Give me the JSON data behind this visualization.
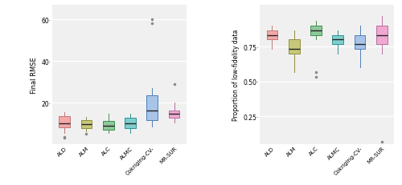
{
  "categories": [
    "ALD",
    "ALM",
    "ALC",
    "ALMC",
    "Cokriging-CV-",
    "MR-SUR"
  ],
  "colors": [
    "#f4a8a8",
    "#c8c87a",
    "#8ec89a",
    "#7ecece",
    "#a8c4e8",
    "#f0a8d0"
  ],
  "edge_colors": [
    "#c07878",
    "#909040",
    "#409050",
    "#309090",
    "#5080b8",
    "#b870a0"
  ],
  "rmse": {
    "ylabel": "Final RMSE",
    "ylim": [
      0,
      67
    ],
    "yticks": [
      20,
      40,
      60
    ],
    "ytick_labels": [
      "20·",
      "40·",
      "60·"
    ],
    "boxes": [
      {
        "q1": 8.0,
        "median": 10.0,
        "q3": 13.5,
        "whislo": 5.5,
        "whishi": 15.5,
        "fliers_lo": [
          3.0,
          3.5
        ],
        "fliers_hi": []
      },
      {
        "q1": 7.5,
        "median": 9.5,
        "q3": 11.5,
        "whislo": 6.0,
        "whishi": 13.0,
        "fliers_lo": [
          5.0
        ],
        "fliers_hi": []
      },
      {
        "q1": 7.0,
        "median": 9.0,
        "q3": 11.0,
        "whislo": 5.5,
        "whishi": 14.5,
        "fliers_lo": [],
        "fliers_hi": []
      },
      {
        "q1": 7.5,
        "median": 10.0,
        "q3": 12.5,
        "whislo": 5.5,
        "whishi": 14.5,
        "fliers_lo": [],
        "fliers_hi": []
      },
      {
        "q1": 11.5,
        "median": 16.0,
        "q3": 23.5,
        "whislo": 8.5,
        "whishi": 27.0,
        "fliers_lo": [],
        "fliers_hi": [
          58.0,
          60.0
        ]
      },
      {
        "q1": 12.5,
        "median": 14.5,
        "q3": 16.0,
        "whislo": 10.5,
        "whishi": 20.0,
        "fliers_lo": [],
        "fliers_hi": [
          29.0
        ]
      }
    ]
  },
  "prop": {
    "ylabel": "Proportion of low-fidelity data",
    "ylim": [
      0.05,
      1.05
    ],
    "yticks": [
      0.25,
      0.5,
      0.75
    ],
    "ytick_labels": [
      "0.25·",
      "0.50·",
      "0.75·"
    ],
    "boxes": [
      {
        "q1": 0.8,
        "median": 0.833,
        "q3": 0.867,
        "whislo": 0.733,
        "whishi": 0.9,
        "fliers_lo": [],
        "fliers_hi": []
      },
      {
        "q1": 0.7,
        "median": 0.733,
        "q3": 0.8,
        "whislo": 0.567,
        "whishi": 0.867,
        "fliers_lo": [],
        "fliers_hi": []
      },
      {
        "q1": 0.833,
        "median": 0.867,
        "q3": 0.9,
        "whislo": 0.8,
        "whishi": 0.933,
        "fliers_lo": [
          0.533,
          0.567
        ],
        "fliers_hi": []
      },
      {
        "q1": 0.767,
        "median": 0.8,
        "q3": 0.833,
        "whislo": 0.7,
        "whishi": 0.867,
        "fliers_lo": [],
        "fliers_hi": []
      },
      {
        "q1": 0.733,
        "median": 0.767,
        "q3": 0.833,
        "whislo": 0.6,
        "whishi": 0.9,
        "fliers_lo": [],
        "fliers_hi": []
      },
      {
        "q1": 0.767,
        "median": 0.833,
        "q3": 0.9,
        "whislo": 0.7,
        "whishi": 0.967,
        "fliers_lo": [
          0.067
        ],
        "fliers_hi": []
      }
    ]
  },
  "background": "#f0f0f0",
  "grid_color": "#ffffff",
  "flier_color": "#888888",
  "flier_size": 3,
  "box_width": 0.5,
  "lw": 0.7
}
